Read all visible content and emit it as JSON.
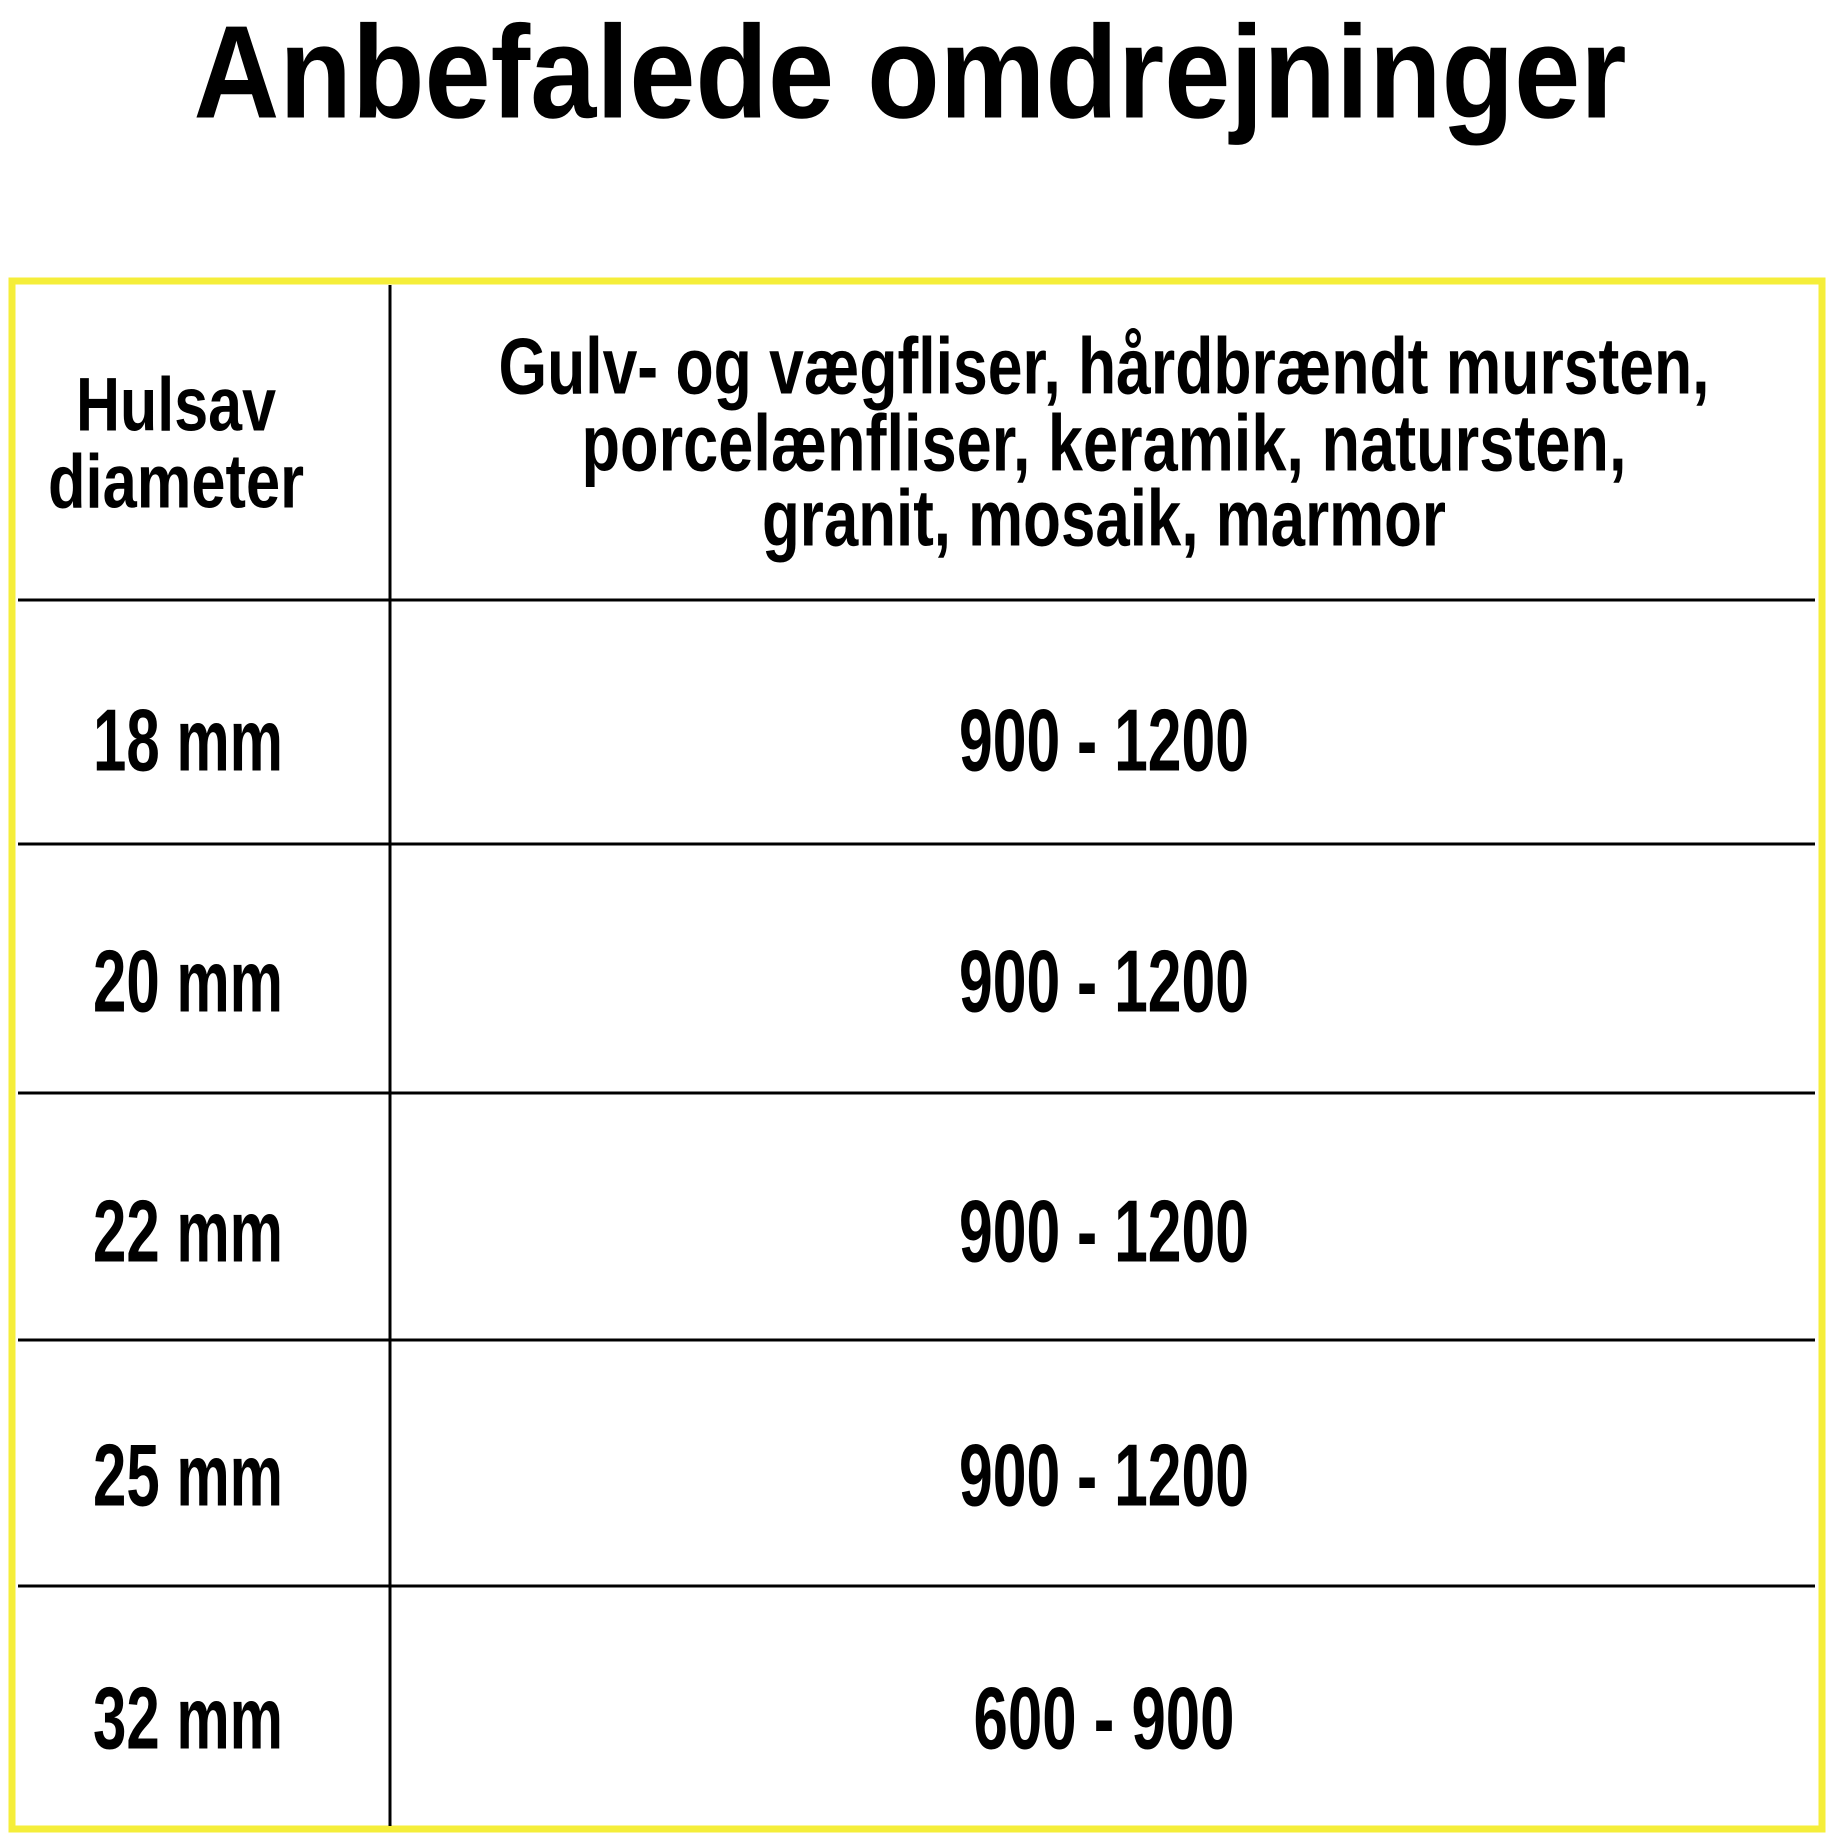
{
  "title": "Anbefalede omdrejninger",
  "table": {
    "header": [
      [
        "Hulsav",
        "diameter"
      ],
      [
        "Gulv- og vægfliser, hårdbrændt mursten,",
        "porcelænfliser, keramik, natursten,",
        "granit, mosaik, marmor"
      ]
    ],
    "rows": [
      [
        "18 mm",
        "900 - 1200"
      ],
      [
        "20 mm",
        "900 - 1200"
      ],
      [
        "22 mm",
        "900 - 1200"
      ],
      [
        "25 mm",
        "900 - 1200"
      ],
      [
        "32 mm",
        "600 - 900"
      ]
    ]
  }
}
